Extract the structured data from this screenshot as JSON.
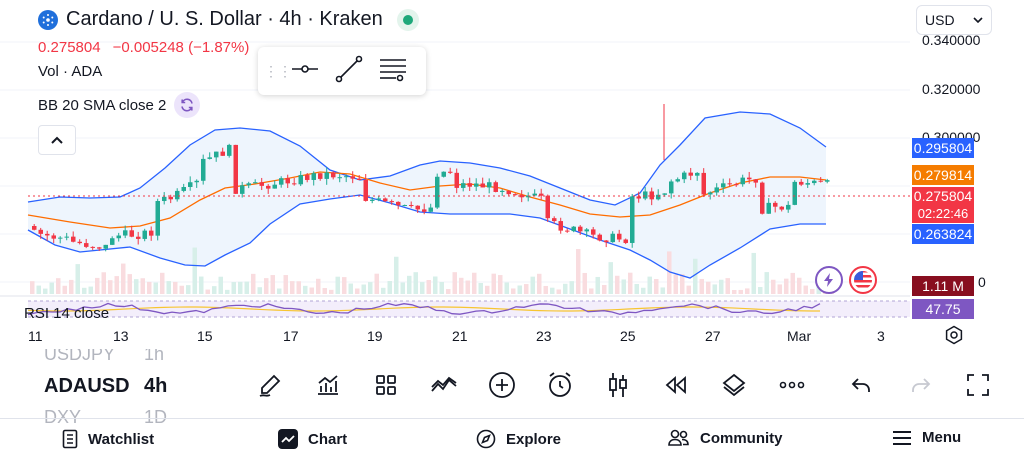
{
  "header": {
    "title": "Cardano / U. S. Dollar · 4h · Kraken",
    "last_price": "0.275804",
    "change": "−0.005248 (−1.87%)",
    "coin_icon": "cardano-logo-icon",
    "status_icon": "market-open-dot-icon"
  },
  "indicators": {
    "volume_label": "Vol · ADA",
    "bb_label": "BB 20 SMA close 2",
    "rsi_label": "RSI 14 close"
  },
  "currency_selector": {
    "value": "USD"
  },
  "price_axis": {
    "ticks": [
      "0.340000",
      "0.320000",
      "0.300000"
    ],
    "tags": {
      "bb_upper": "0.295804",
      "bb_basis": "0.279814",
      "last": "0.275804",
      "countdown": "02:22:46",
      "bb_lower": "0.263824",
      "volume": "1.11 M",
      "rsi": "47.75",
      "low_tick_fragment": "0"
    }
  },
  "time_axis": {
    "labels": [
      "11",
      "13",
      "15",
      "17",
      "19",
      "21",
      "23",
      "25",
      "27",
      "Mar",
      "3"
    ]
  },
  "watchlist_strip": [
    {
      "symbol": "USDJPY",
      "timeframe": "1h",
      "state": "faded"
    },
    {
      "symbol": "ADAUSD",
      "timeframe": "4h",
      "state": "active"
    },
    {
      "symbol": "DXY",
      "timeframe": "1D",
      "state": "faded"
    }
  ],
  "bottom_nav": [
    {
      "label": "Watchlist",
      "icon": "watchlist-icon"
    },
    {
      "label": "Chart",
      "icon": "chart-icon"
    },
    {
      "label": "Explore",
      "icon": "compass-icon"
    },
    {
      "label": "Community",
      "icon": "people-icon"
    },
    {
      "label": "Menu",
      "icon": "hamburger-icon"
    }
  ],
  "colors": {
    "up": "#22ab94",
    "down": "#f23645",
    "bb_band": "#2962ff",
    "bb_basis": "#ff6d00",
    "bb_fill": "#eef5fd",
    "rsi_line": "#7e57c2",
    "rsi_ma": "#f7c531",
    "last_price_tag": "#f23645",
    "bb_upper_tag": "#2962ff",
    "bb_basis_tag": "#f57c00",
    "volume_tag": "#880e1f",
    "rsi_tag": "#7e57c2"
  }
}
